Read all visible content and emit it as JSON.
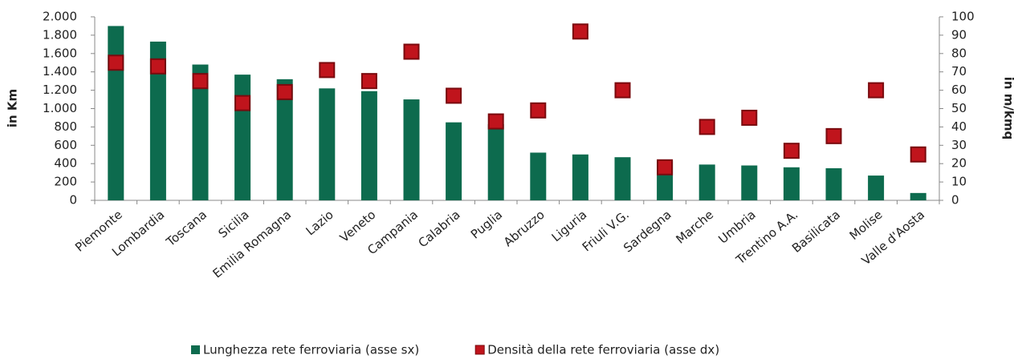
{
  "chart_data": {
    "type": "bar",
    "y_axis_label": "in Km",
    "y2_axis_label": "in m/kmq",
    "categories": [
      "Piemonte",
      "Lombardia",
      "Toscana",
      "Sicilia",
      "Emilia Romagna",
      "Lazio",
      "Veneto",
      "Campania",
      "Calabria",
      "Puglia",
      "Abruzzo",
      "Liguria",
      "Friuli V.G.",
      "Sardegna",
      "Marche",
      "Umbria",
      "Trentino A.A.",
      "Basilicata",
      "Molise",
      "Valle d'Aosta"
    ],
    "series": [
      {
        "name": "Lunghezza rete ferroviaria (asse sx)",
        "type": "bar",
        "color": "#0d6b4e",
        "values": [
          1900,
          1730,
          1480,
          1370,
          1320,
          1220,
          1190,
          1100,
          850,
          830,
          520,
          500,
          470,
          430,
          390,
          380,
          360,
          350,
          270,
          80
        ]
      },
      {
        "name": "Densità della rete ferroviaria (asse dx)",
        "type": "scatter",
        "axis": "y2",
        "color": "#c0141c",
        "values": [
          75,
          73,
          65,
          53,
          59,
          71,
          65,
          81,
          57,
          43,
          49,
          92,
          60,
          18,
          40,
          45,
          27,
          35,
          60,
          25
        ]
      }
    ],
    "ylim": [
      0,
      2000
    ],
    "yticks": [
      0,
      200,
      400,
      600,
      800,
      {
        "value": 1000,
        "label": "1.000"
      },
      {
        "value": 1200,
        "label": "1.200"
      },
      {
        "value": 1400,
        "label": "1.400"
      },
      {
        "value": 1600,
        "label": "1.600"
      },
      {
        "value": 1800,
        "label": "1.800"
      },
      {
        "value": 2000,
        "label": "2.000"
      }
    ],
    "y2lim": [
      0,
      100
    ],
    "y2ticks": [
      0,
      10,
      20,
      30,
      40,
      50,
      60,
      70,
      80,
      90,
      100
    ],
    "grid": false,
    "legend": "bottom"
  }
}
